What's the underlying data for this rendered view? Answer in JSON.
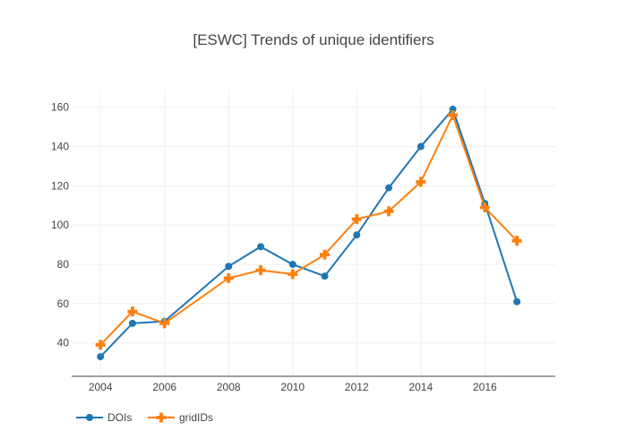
{
  "chart_data": {
    "type": "line",
    "title": "[ESWC] Trends of unique identifiers",
    "xlabel": "",
    "ylabel": "",
    "x": [
      2004,
      2005,
      2006,
      2008,
      2009,
      2010,
      2011,
      2012,
      2013,
      2014,
      2015,
      2016,
      2017
    ],
    "x_ticks": [
      2004,
      2006,
      2008,
      2010,
      2012,
      2014,
      2016
    ],
    "y_ticks": [
      40,
      60,
      80,
      100,
      120,
      140,
      160
    ],
    "xlim": [
      2003.1,
      2018.2
    ],
    "ylim": [
      23,
      169
    ],
    "grid": true,
    "legend_position": "bottom-left",
    "series": [
      {
        "name": "DOIs",
        "color": "#1f77b4",
        "marker": "circle",
        "values": [
          33,
          50,
          51,
          79,
          89,
          80,
          74,
          95,
          119,
          140,
          159,
          111,
          61
        ]
      },
      {
        "name": "gridIDs",
        "color": "#ff7f0e",
        "marker": "cross",
        "values": [
          39,
          56,
          50,
          73,
          77,
          75,
          85,
          103,
          107,
          122,
          156,
          109,
          92
        ]
      }
    ]
  }
}
